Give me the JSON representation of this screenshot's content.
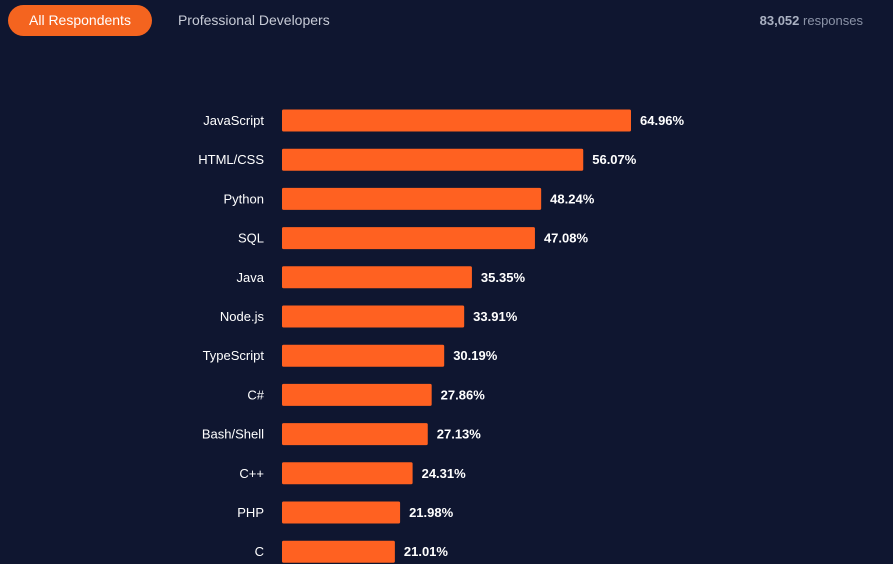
{
  "tabs": [
    {
      "label": "All Respondents",
      "active": true
    },
    {
      "label": "Professional Developers",
      "active": false
    }
  ],
  "responses": {
    "count": "83,052",
    "label": "responses"
  },
  "colors": {
    "background": "#0f1630",
    "accent": "#f4641f",
    "bar": "#ff6121"
  },
  "chart_data": {
    "type": "bar",
    "orientation": "horizontal",
    "categories": [
      "JavaScript",
      "HTML/CSS",
      "Python",
      "SQL",
      "Java",
      "Node.js",
      "TypeScript",
      "C#",
      "Bash/Shell",
      "C++",
      "PHP",
      "C"
    ],
    "values": [
      64.96,
      56.07,
      48.24,
      47.08,
      35.35,
      33.91,
      30.19,
      27.86,
      27.13,
      24.31,
      21.98,
      21.01
    ],
    "value_labels": [
      "64.96%",
      "56.07%",
      "48.24%",
      "47.08%",
      "35.35%",
      "33.91%",
      "30.19%",
      "27.86%",
      "27.13%",
      "24.31%",
      "21.98%",
      "21.01%"
    ],
    "unit": "%",
    "xlim": [
      0,
      100
    ],
    "grid": false,
    "legend": "none"
  }
}
